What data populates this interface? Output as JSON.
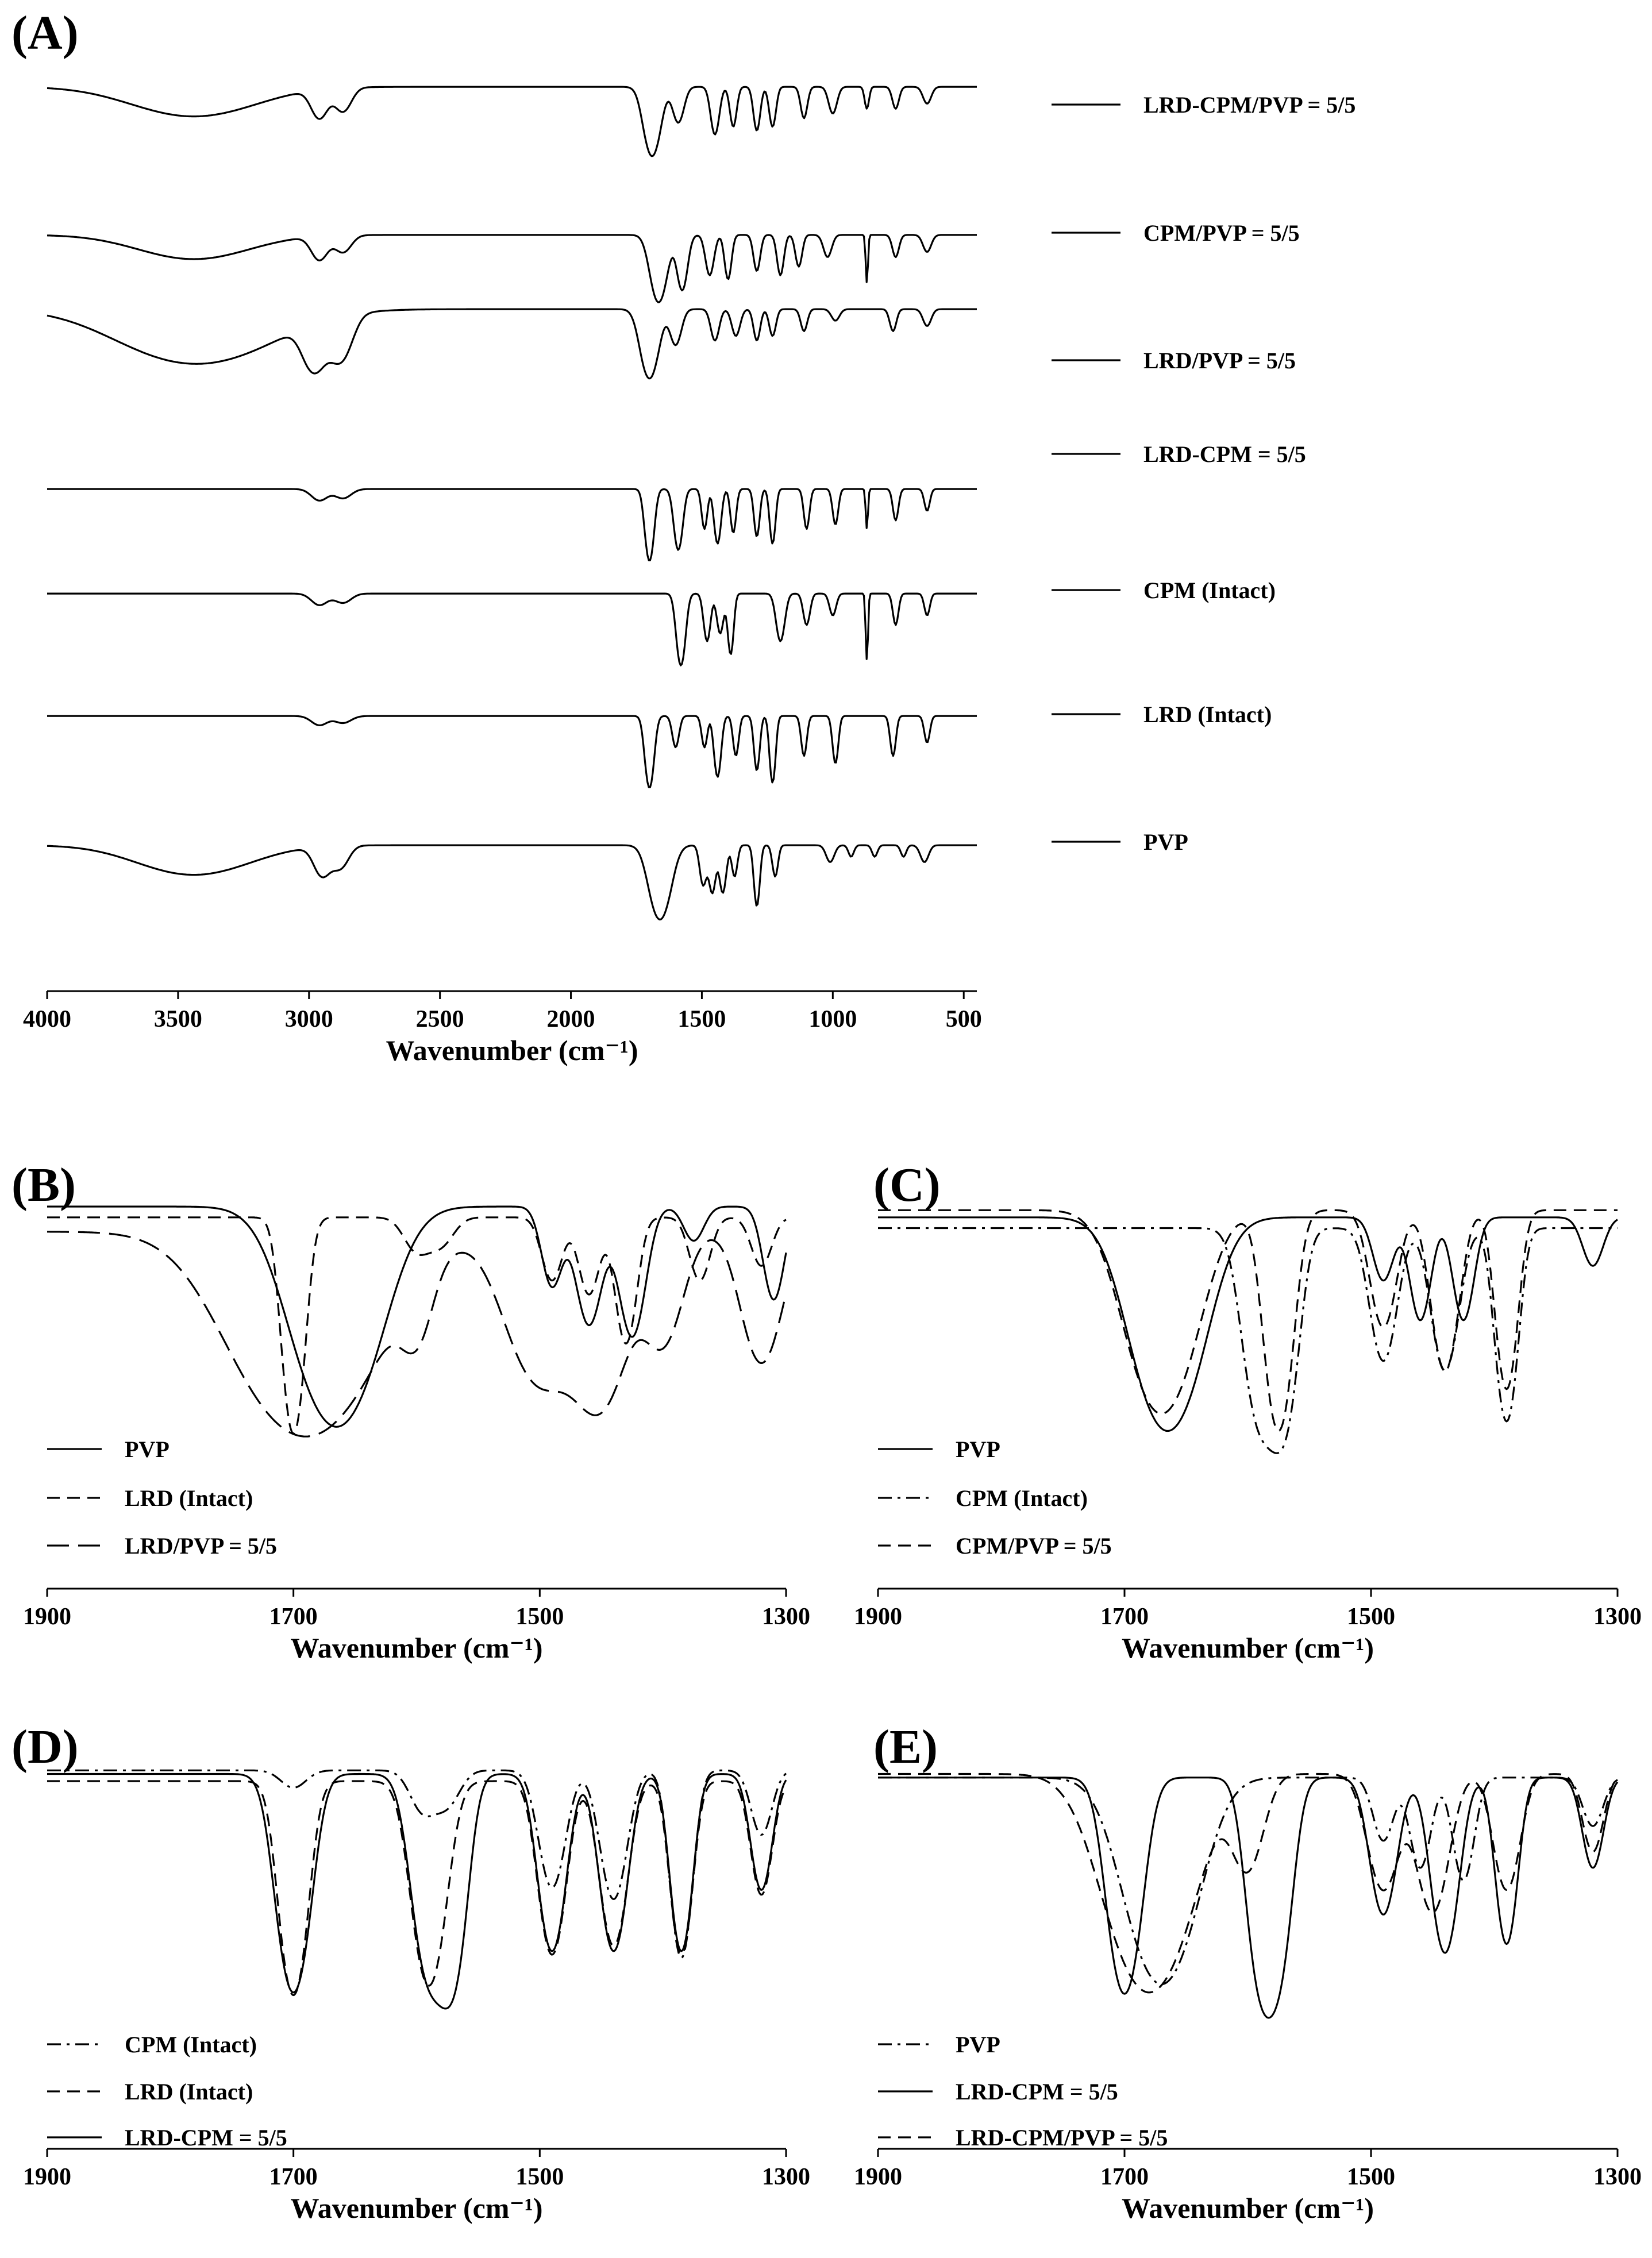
{
  "figure_note": "FTIR spectra; y axis (transmittance) has no ticks or label",
  "chart_data": [
    {
      "type": "line",
      "panel": "(A)",
      "title": "",
      "xlabel": "Wavenumber (cm⁻¹)",
      "ylabel": "",
      "xlim": [
        4000,
        450
      ],
      "reversed_x": true,
      "x_ticks": [
        4000,
        3500,
        3000,
        2500,
        2000,
        1500,
        1000,
        500
      ],
      "grid": false,
      "legend": "right",
      "stacked_offsets": true,
      "series": [
        {
          "name": "LRD-CPM/PVP = 5/5",
          "style": "solid",
          "baseline": 0.95,
          "bands": [
            [
              3440,
              0.28,
              220
            ],
            [
              2960,
              0.28,
              30
            ],
            [
              2870,
              0.22,
              30
            ],
            [
              1690,
              0.85,
              28
            ],
            [
              1590,
              0.35,
              20
            ],
            [
              1450,
              0.5,
              15
            ],
            [
              1380,
              0.4,
              12
            ],
            [
              1290,
              0.45,
              12
            ],
            [
              1230,
              0.4,
              12
            ],
            [
              1110,
              0.3,
              12
            ],
            [
              1000,
              0.25,
              15
            ],
            [
              870,
              0.2,
              8
            ],
            [
              760,
              0.2,
              12
            ],
            [
              640,
              0.15,
              15
            ]
          ]
        },
        {
          "name": "CPM/PVP = 5/5",
          "style": "solid",
          "baseline": 0.96,
          "bands": [
            [
              3440,
              0.22,
              200
            ],
            [
              2960,
              0.22,
              30
            ],
            [
              2870,
              0.15,
              30
            ],
            [
              1665,
              0.8,
              28
            ],
            [
              1575,
              0.6,
              18
            ],
            [
              1470,
              0.4,
              15
            ],
            [
              1400,
              0.45,
              12
            ],
            [
              1290,
              0.35,
              12
            ],
            [
              1200,
              0.4,
              12
            ],
            [
              1130,
              0.3,
              12
            ],
            [
              1020,
              0.2,
              15
            ],
            [
              870,
              0.5,
              4
            ],
            [
              760,
              0.2,
              12
            ],
            [
              640,
              0.15,
              15
            ]
          ]
        },
        {
          "name": "LRD/PVP = 5/5",
          "style": "solid",
          "baseline": 0.95,
          "bands": [
            [
              3430,
              0.6,
              260
            ],
            [
              2980,
              0.6,
              40
            ],
            [
              2880,
              0.5,
              40
            ],
            [
              1700,
              0.85,
              30
            ],
            [
              1600,
              0.35,
              20
            ],
            [
              1450,
              0.3,
              15
            ],
            [
              1370,
              0.25,
              15
            ],
            [
              1290,
              0.3,
              12
            ],
            [
              1230,
              0.25,
              12
            ],
            [
              1110,
              0.2,
              12
            ],
            [
              990,
              0.1,
              15
            ],
            [
              770,
              0.2,
              12
            ],
            [
              640,
              0.15,
              15
            ]
          ]
        },
        {
          "name": "LRD-CPM = 5/5",
          "style": "solid",
          "baseline": 0.95,
          "bands": [
            [
              2960,
              0.1,
              30
            ],
            [
              2870,
              0.08,
              30
            ],
            [
              1700,
              0.9,
              15
            ],
            [
              1590,
              0.7,
              15
            ],
            [
              1490,
              0.4,
              10
            ],
            [
              1440,
              0.6,
              12
            ],
            [
              1380,
              0.45,
              10
            ],
            [
              1290,
              0.5,
              10
            ],
            [
              1230,
              0.6,
              10
            ],
            [
              1100,
              0.4,
              10
            ],
            [
              990,
              0.35,
              10
            ],
            [
              870,
              0.4,
              4
            ],
            [
              760,
              0.3,
              10
            ],
            [
              640,
              0.2,
              10
            ]
          ]
        },
        {
          "name": "CPM (Intact)",
          "style": "solid",
          "baseline": 0.95,
          "bands": [
            [
              2960,
              0.1,
              30
            ],
            [
              2870,
              0.08,
              30
            ],
            [
              1580,
              0.9,
              15
            ],
            [
              1480,
              0.5,
              12
            ],
            [
              1430,
              0.4,
              12
            ],
            [
              1390,
              0.7,
              10
            ],
            [
              1200,
              0.5,
              15
            ],
            [
              1100,
              0.3,
              12
            ],
            [
              1000,
              0.2,
              12
            ],
            [
              870,
              0.8,
              4
            ],
            [
              760,
              0.3,
              10
            ],
            [
              640,
              0.2,
              10
            ]
          ]
        },
        {
          "name": "LRD (Intact)",
          "style": "solid",
          "baseline": 0.95,
          "bands": [
            [
              2960,
              0.08,
              30
            ],
            [
              2870,
              0.06,
              30
            ],
            [
              1700,
              0.9,
              15
            ],
            [
              1600,
              0.3,
              12
            ],
            [
              1490,
              0.3,
              10
            ],
            [
              1440,
              0.7,
              12
            ],
            [
              1370,
              0.4,
              10
            ],
            [
              1290,
              0.6,
              10
            ],
            [
              1230,
              0.8,
              10
            ],
            [
              1110,
              0.4,
              10
            ],
            [
              990,
              0.5,
              10
            ],
            [
              770,
              0.4,
              10
            ],
            [
              640,
              0.25,
              10
            ]
          ]
        },
        {
          "name": "PVP",
          "style": "solid",
          "baseline": 0.95,
          "bands": [
            [
              3440,
              0.28,
              200
            ],
            [
              2950,
              0.28,
              30
            ],
            [
              2880,
              0.2,
              30
            ],
            [
              1660,
              0.95,
              35
            ],
            [
              1495,
              0.4,
              12
            ],
            [
              1460,
              0.5,
              12
            ],
            [
              1420,
              0.5,
              12
            ],
            [
              1375,
              0.3,
              10
            ],
            [
              1290,
              0.7,
              10
            ],
            [
              1220,
              0.3,
              10
            ],
            [
              1010,
              0.15,
              15
            ],
            [
              930,
              0.1,
              10
            ],
            [
              840,
              0.1,
              10
            ],
            [
              730,
              0.1,
              10
            ],
            [
              650,
              0.15,
              15
            ]
          ]
        }
      ]
    },
    {
      "type": "line",
      "panel": "(B)",
      "xlabel": "Wavenumber (cm⁻¹)",
      "ylabel": "",
      "xlim": [
        1900,
        1300
      ],
      "reversed_x": true,
      "x_ticks": [
        1900,
        1700,
        1500,
        1300
      ],
      "grid": false,
      "legend": "lower-left",
      "series": [
        {
          "name": "PVP",
          "style": "solid",
          "baseline": 1.0,
          "bands": [
            [
              1665,
              0.95,
              30
            ],
            [
              1490,
              0.25,
              8
            ],
            [
              1460,
              0.4,
              10
            ],
            [
              1425,
              0.45,
              10
            ],
            [
              1375,
              0.1,
              8
            ],
            [
              1310,
              0.3,
              8
            ]
          ]
        },
        {
          "name": "LRD (Intact)",
          "style": "dashed",
          "baseline": 0.97,
          "bands": [
            [
              1700,
              0.97,
              8
            ],
            [
              1600,
              0.1,
              10
            ],
            [
              1580,
              0.08,
              10
            ],
            [
              1490,
              0.2,
              8
            ],
            [
              1460,
              0.25,
              8
            ],
            [
              1430,
              0.45,
              8
            ],
            [
              1370,
              0.2,
              8
            ],
            [
              1320,
              0.15,
              8
            ]
          ]
        },
        {
          "name": "LRD/PVP = 5/5",
          "style": "longdash",
          "baseline": 0.93,
          "bands": [
            [
              1690,
              0.95,
              50
            ],
            [
              1600,
              0.25,
              12
            ],
            [
              1500,
              0.6,
              25
            ],
            [
              1450,
              0.7,
              20
            ],
            [
              1400,
              0.4,
              15
            ],
            [
              1320,
              0.5,
              15
            ]
          ]
        }
      ]
    },
    {
      "type": "line",
      "panel": "(C)",
      "xlabel": "Wavenumber (cm⁻¹)",
      "ylabel": "",
      "xlim": [
        1900,
        1300
      ],
      "reversed_x": true,
      "x_ticks": [
        1900,
        1700,
        1500,
        1300
      ],
      "grid": false,
      "legend": "lower-left",
      "series": [
        {
          "name": "PVP",
          "style": "solid",
          "baseline": 0.97,
          "bands": [
            [
              1665,
              0.95,
              25
            ],
            [
              1490,
              0.2,
              8
            ],
            [
              1460,
              0.35,
              8
            ],
            [
              1425,
              0.35,
              8
            ],
            [
              1320,
              0.15,
              8
            ]
          ]
        },
        {
          "name": "CPM (Intact)",
          "style": "dashdot",
          "baseline": 0.94,
          "bands": [
            [
              1590,
              0.85,
              12
            ],
            [
              1570,
              0.8,
              10
            ],
            [
              1490,
              0.5,
              10
            ],
            [
              1440,
              0.55,
              10
            ],
            [
              1390,
              0.85,
              8
            ]
          ]
        },
        {
          "name": "CPM/PVP = 5/5",
          "style": "dashed",
          "baseline": 0.99,
          "bands": [
            [
              1670,
              0.85,
              25
            ],
            [
              1575,
              0.97,
              10
            ],
            [
              1490,
              0.4,
              10
            ],
            [
              1440,
              0.6,
              10
            ],
            [
              1390,
              0.7,
              8
            ]
          ]
        }
      ]
    },
    {
      "type": "line",
      "panel": "(D)",
      "xlabel": "Wavenumber (cm⁻¹)",
      "ylabel": "",
      "xlim": [
        1900,
        1300
      ],
      "reversed_x": true,
      "x_ticks": [
        1900,
        1700,
        1500,
        1300
      ],
      "grid": false,
      "legend": "lower-left",
      "series": [
        {
          "name": "CPM (Intact)",
          "style": "dashdot",
          "baseline": 0.99,
          "bands": [
            [
              1700,
              0.05,
              10
            ],
            [
              1595,
              0.12,
              10
            ],
            [
              1575,
              0.1,
              10
            ],
            [
              1490,
              0.4,
              10
            ],
            [
              1440,
              0.45,
              10
            ],
            [
              1385,
              0.75,
              8
            ],
            [
              1320,
              0.2,
              8
            ]
          ]
        },
        {
          "name": "LRD (Intact)",
          "style": "dashed",
          "baseline": 0.96,
          "bands": [
            [
              1700,
              0.97,
              10
            ],
            [
              1590,
              0.9,
              12
            ],
            [
              1490,
              0.7,
              10
            ],
            [
              1440,
              0.65,
              10
            ],
            [
              1385,
              0.7,
              8
            ],
            [
              1320,
              0.4,
              8
            ]
          ]
        },
        {
          "name": "LRD-CPM = 5/5",
          "style": "solid",
          "baseline": 0.98,
          "bands": [
            [
              1700,
              0.97,
              12
            ],
            [
              1590,
              0.85,
              12
            ],
            [
              1570,
              0.8,
              10
            ],
            [
              1490,
              0.7,
              10
            ],
            [
              1440,
              0.7,
              10
            ],
            [
              1385,
              0.7,
              8
            ],
            [
              1320,
              0.4,
              8
            ]
          ]
        }
      ]
    },
    {
      "type": "line",
      "panel": "(E)",
      "xlabel": "Wavenumber (cm⁻¹)",
      "ylabel": "",
      "xlim": [
        1900,
        1300
      ],
      "reversed_x": true,
      "x_ticks": [
        1900,
        1700,
        1500,
        1300
      ],
      "grid": false,
      "legend": "lower-left",
      "series": [
        {
          "name": "PVP",
          "style": "dashdot",
          "baseline": 0.97,
          "bands": [
            [
              1670,
              0.9,
              25
            ],
            [
              1490,
              0.2,
              8
            ],
            [
              1460,
              0.3,
              8
            ],
            [
              1425,
              0.35,
              8
            ],
            [
              1320,
              0.15,
              8
            ]
          ]
        },
        {
          "name": "LRD-CPM = 5/5",
          "style": "solid",
          "baseline": 0.97,
          "bands": [
            [
              1700,
              0.97,
              12
            ],
            [
              1590,
              0.8,
              10
            ],
            [
              1575,
              0.75,
              10
            ],
            [
              1490,
              0.5,
              10
            ],
            [
              1440,
              0.7,
              10
            ],
            [
              1390,
              0.65,
              8
            ],
            [
              1320,
              0.3,
              8
            ]
          ]
        },
        {
          "name": "LRD-CPM/PVP = 5/5",
          "style": "dashed",
          "baseline": 0.98,
          "bands": [
            [
              1680,
              0.97,
              30
            ],
            [
              1600,
              0.3,
              12
            ],
            [
              1490,
              0.4,
              12
            ],
            [
              1450,
              0.5,
              12
            ],
            [
              1390,
              0.4,
              10
            ],
            [
              1320,
              0.25,
              8
            ]
          ]
        }
      ]
    }
  ]
}
